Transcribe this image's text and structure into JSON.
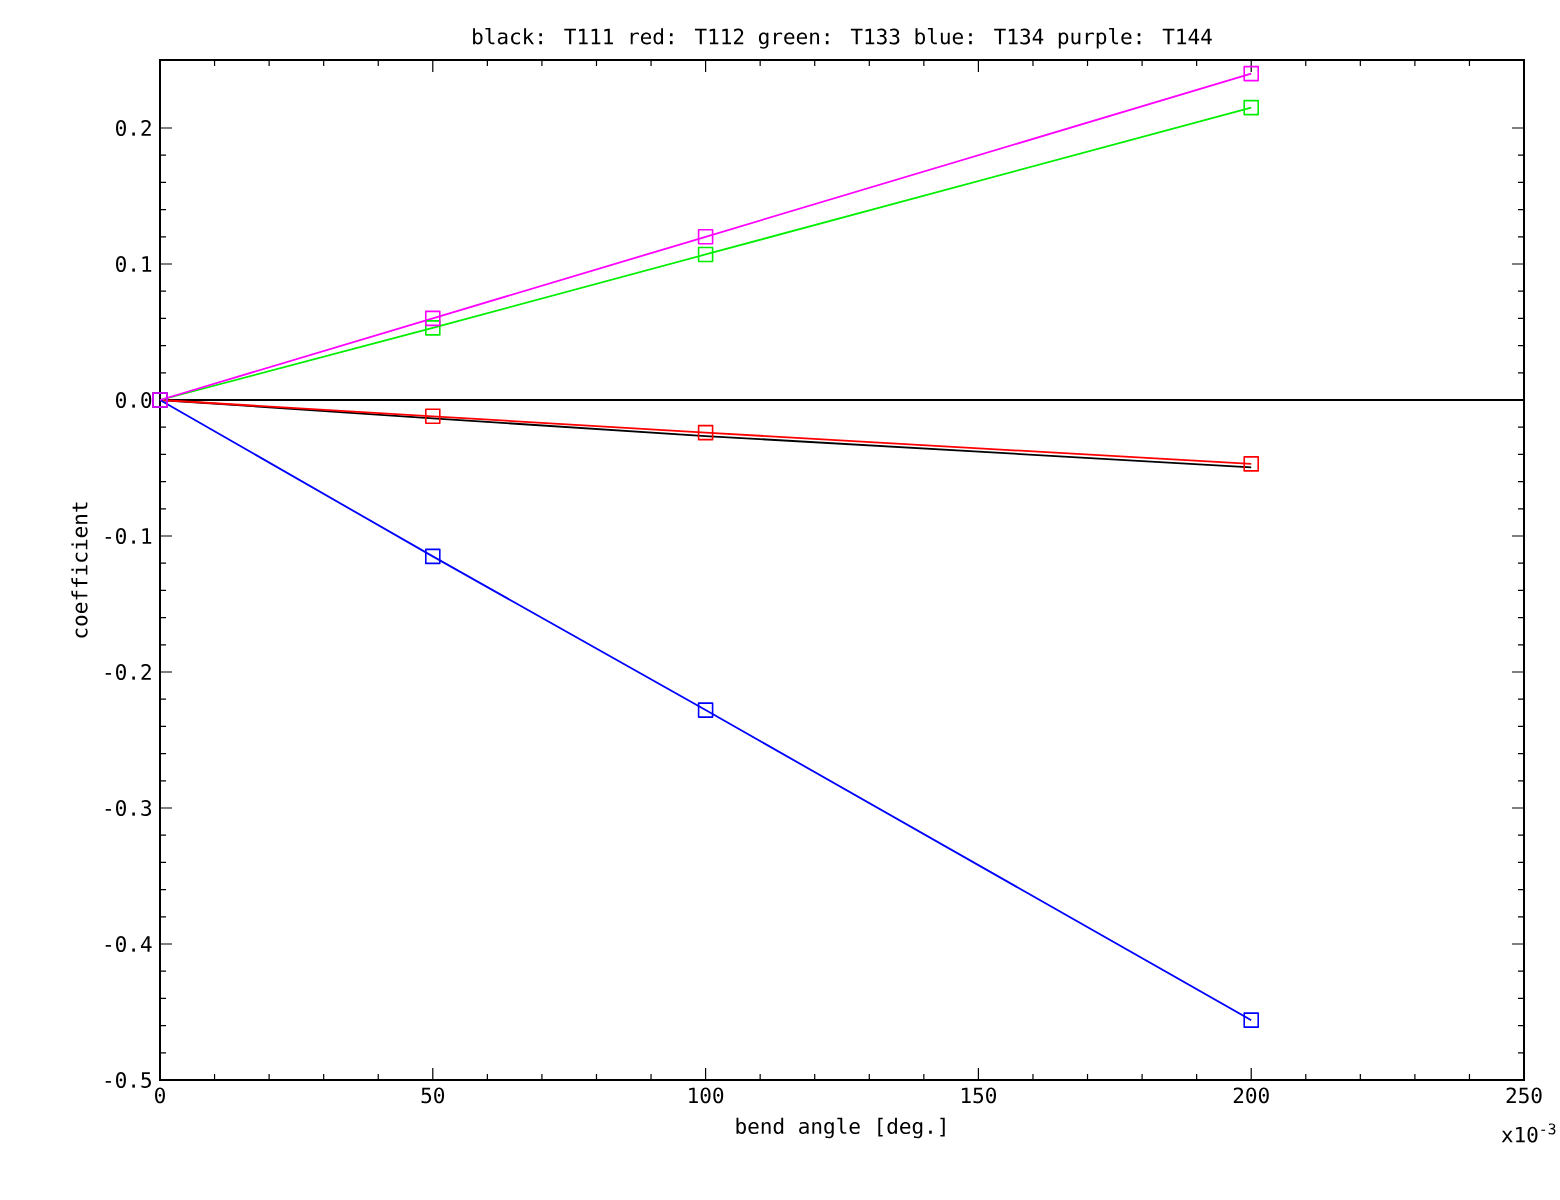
{
  "chart_data": {
    "type": "line",
    "title": "black: T111 red: T112 green: T133 blue: T134 purple: T144",
    "xlabel": "bend angle [deg.]",
    "ylabel": "coefficient",
    "x": [
      0,
      50,
      100,
      200
    ],
    "series": [
      {
        "color": "#000000",
        "marker": "none",
        "values": [
          0,
          -0.0135,
          -0.0265,
          -0.0495
        ]
      },
      {
        "color": "#ff0000",
        "values": [
          0,
          -0.012,
          -0.024,
          -0.047
        ]
      },
      {
        "color": "#00ee00",
        "values": [
          0,
          0.053,
          0.107,
          0.215
        ]
      },
      {
        "color": "#0000ff",
        "values": [
          0,
          -0.115,
          -0.228,
          -0.456
        ]
      },
      {
        "color": "#ff00ff",
        "values": [
          0,
          0.06,
          0.12,
          0.24
        ]
      }
    ],
    "xlim": [
      0,
      250
    ],
    "xticks": [
      0,
      50,
      100,
      150,
      200,
      250
    ],
    "ylim": [
      -0.5,
      0.25
    ],
    "yticks": [
      {
        "value": -0.5,
        "label": "-0.5"
      },
      {
        "value": -0.4,
        "label": "-0.4"
      },
      {
        "value": -0.3,
        "label": "-0.3"
      },
      {
        "value": -0.2,
        "label": "-0.2"
      },
      {
        "value": -0.1,
        "label": "-0.1"
      },
      {
        "value": 0,
        "label": "0.0"
      },
      {
        "value": 0.1,
        "label": "0.1"
      },
      {
        "value": 0.2,
        "label": "0.2"
      }
    ],
    "ref_lines": [
      {
        "axis": "y",
        "value": 0,
        "color": "#000000"
      }
    ],
    "annotations": [
      "x10$^{-3}$"
    ],
    "marker": "square",
    "line_style": "solid",
    "grid": false
  }
}
